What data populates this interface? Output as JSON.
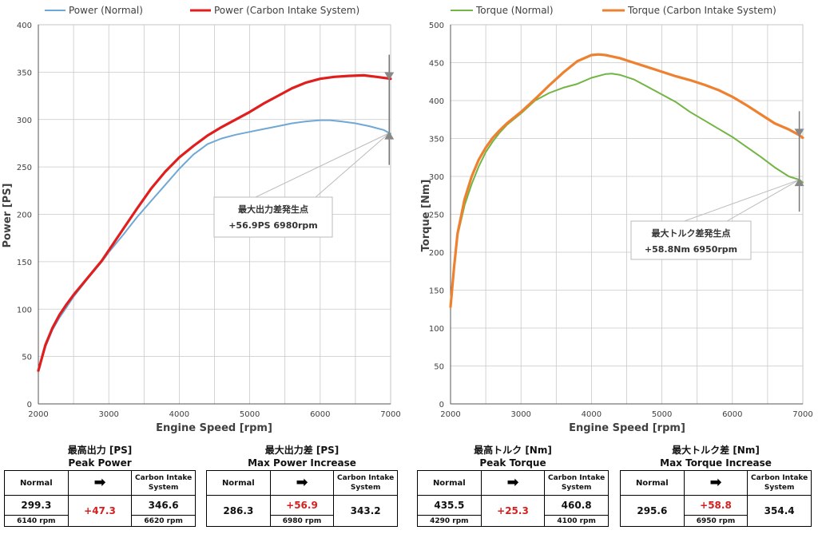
{
  "charts": {
    "power": {
      "legend": [
        "Power (Normal)",
        "Power (Carbon Intake System)"
      ],
      "xlabel": "Engine Speed [rpm]",
      "ylabel": "Power [PS]",
      "annotation": {
        "title": "最大出力差発生点",
        "value": "+56.9PS  6980rpm"
      }
    },
    "torque": {
      "legend": [
        "Torque (Normal)",
        "Torque (Carbon Intake System)"
      ],
      "xlabel": "Engine Speed [rpm]",
      "ylabel": "Torque [Nm]",
      "annotation": {
        "title": "最大トルク差発生点",
        "value": "+58.8Nm  6950rpm"
      }
    }
  },
  "chart_data": [
    {
      "type": "line",
      "title": "",
      "xlabel": "Engine Speed [rpm]",
      "ylabel": "Power [PS]",
      "xlim": [
        2000,
        7000
      ],
      "ylim": [
        0,
        400
      ],
      "xticks": [
        2000,
        3000,
        4000,
        5000,
        6000,
        7000
      ],
      "yticks": [
        0,
        50,
        100,
        150,
        200,
        250,
        300,
        350,
        400
      ],
      "grid": true,
      "legend": "top",
      "series": [
        {
          "name": "Power (Normal)",
          "color": "#6fa8d6",
          "x": [
            2000,
            2100,
            2200,
            2300,
            2400,
            2500,
            2700,
            2900,
            3000,
            3200,
            3400,
            3600,
            3800,
            4000,
            4200,
            4400,
            4600,
            4800,
            5000,
            5200,
            5400,
            5600,
            5800,
            6000,
            6140,
            6300,
            6500,
            6700,
            6900,
            7000
          ],
          "y": [
            35,
            60,
            78,
            91,
            102,
            113,
            132,
            150,
            160,
            178,
            197,
            214,
            231,
            248,
            263,
            274,
            280,
            284,
            287,
            290,
            293,
            296,
            298,
            299.3,
            299.3,
            298,
            296,
            293,
            289,
            285
          ]
        },
        {
          "name": "Power (Carbon Intake System)",
          "color": "#e01e1e",
          "x": [
            2000,
            2100,
            2200,
            2300,
            2400,
            2500,
            2700,
            2900,
            3000,
            3200,
            3400,
            3600,
            3800,
            4000,
            4200,
            4400,
            4600,
            4800,
            5000,
            5200,
            5400,
            5600,
            5800,
            6000,
            6200,
            6400,
            6620,
            6800,
            6980,
            7000
          ],
          "y": [
            35,
            62,
            80,
            94,
            105,
            115,
            133,
            151,
            162,
            184,
            206,
            227,
            245,
            260,
            272,
            283,
            292,
            300,
            308,
            317,
            325,
            333,
            339,
            343,
            345,
            346,
            346.6,
            345,
            343.2,
            343
          ]
        }
      ],
      "annotation": {
        "title": "最大出力差発生点",
        "value": "+56.9PS  6980rpm",
        "rpm": 6980
      }
    },
    {
      "type": "line",
      "title": "",
      "xlabel": "Engine Speed [rpm]",
      "ylabel": "Torque [Nm]",
      "xlim": [
        2000,
        7000
      ],
      "ylim": [
        0,
        500
      ],
      "xticks": [
        2000,
        3000,
        4000,
        5000,
        6000,
        7000
      ],
      "yticks": [
        0,
        50,
        100,
        150,
        200,
        250,
        300,
        350,
        400,
        450,
        500
      ],
      "grid": true,
      "legend": "top",
      "series": [
        {
          "name": "Torque (Normal)",
          "color": "#72b544",
          "x": [
            2000,
            2050,
            2100,
            2200,
            2300,
            2400,
            2500,
            2600,
            2700,
            2800,
            3000,
            3200,
            3400,
            3600,
            3800,
            4000,
            4200,
            4290,
            4400,
            4600,
            4800,
            5000,
            5200,
            5400,
            5600,
            5800,
            6000,
            6200,
            6400,
            6600,
            6800,
            6950,
            7000
          ],
          "y": [
            128,
            180,
            222,
            262,
            290,
            313,
            332,
            346,
            358,
            368,
            383,
            400,
            410,
            417,
            422,
            430,
            435,
            435.5,
            434,
            428,
            418,
            408,
            398,
            385,
            374,
            363,
            352,
            339,
            326,
            312,
            300,
            295.6,
            292
          ]
        },
        {
          "name": "Torque (Carbon Intake System)",
          "color": "#ee8130",
          "x": [
            2000,
            2050,
            2100,
            2200,
            2300,
            2400,
            2500,
            2600,
            2700,
            2800,
            3000,
            3200,
            3400,
            3600,
            3800,
            4000,
            4100,
            4200,
            4400,
            4600,
            4800,
            5000,
            5200,
            5400,
            5600,
            5800,
            6000,
            6200,
            6400,
            6600,
            6800,
            6950,
            7000
          ],
          "y": [
            128,
            180,
            225,
            270,
            300,
            322,
            338,
            351,
            361,
            370,
            385,
            402,
            420,
            437,
            452,
            460,
            460.8,
            460,
            456,
            450,
            444,
            438,
            432,
            427,
            421,
            414,
            405,
            394,
            382,
            370,
            362,
            354.4,
            351
          ]
        }
      ],
      "annotation": {
        "title": "最大トルク差発生点",
        "value": "+58.8Nm  6950rpm",
        "rpm": 6950
      }
    }
  ],
  "tables": [
    {
      "title_jp": "最高出力 [PS]",
      "title_en": "Peak Power",
      "label_normal": "Normal",
      "label_carbon_1": "Carbon Intake",
      "label_carbon_2": "System",
      "normal": "299.3",
      "delta": "+47.3",
      "carbon": "346.6",
      "normal_rpm": "6140 rpm",
      "carbon_rpm": "6620 rpm"
    },
    {
      "title_jp": "最大出力差 [PS]",
      "title_en": "Max Power Increase",
      "label_normal": "Normal",
      "label_carbon_1": "Carbon Intake",
      "label_carbon_2": "System",
      "normal": "286.3",
      "delta": "+56.9",
      "carbon": "343.2",
      "rpm": "6980 rpm"
    },
    {
      "title_jp": "最高トルク [Nm]",
      "title_en": "Peak Torque",
      "label_normal": "Normal",
      "label_carbon_1": "Carbon Intake",
      "label_carbon_2": "System",
      "normal": "435.5",
      "delta": "+25.3",
      "carbon": "460.8",
      "normal_rpm": "4290 rpm",
      "carbon_rpm": "4100 rpm"
    },
    {
      "title_jp": "最大トルク差 [Nm]",
      "title_en": "Max Torque Increase",
      "label_normal": "Normal",
      "label_carbon_1": "Carbon Intake",
      "label_carbon_2": "System",
      "normal": "295.6",
      "delta": "+58.8",
      "carbon": "354.4",
      "rpm": "6950 rpm"
    }
  ],
  "arrow_glyph": "➡"
}
